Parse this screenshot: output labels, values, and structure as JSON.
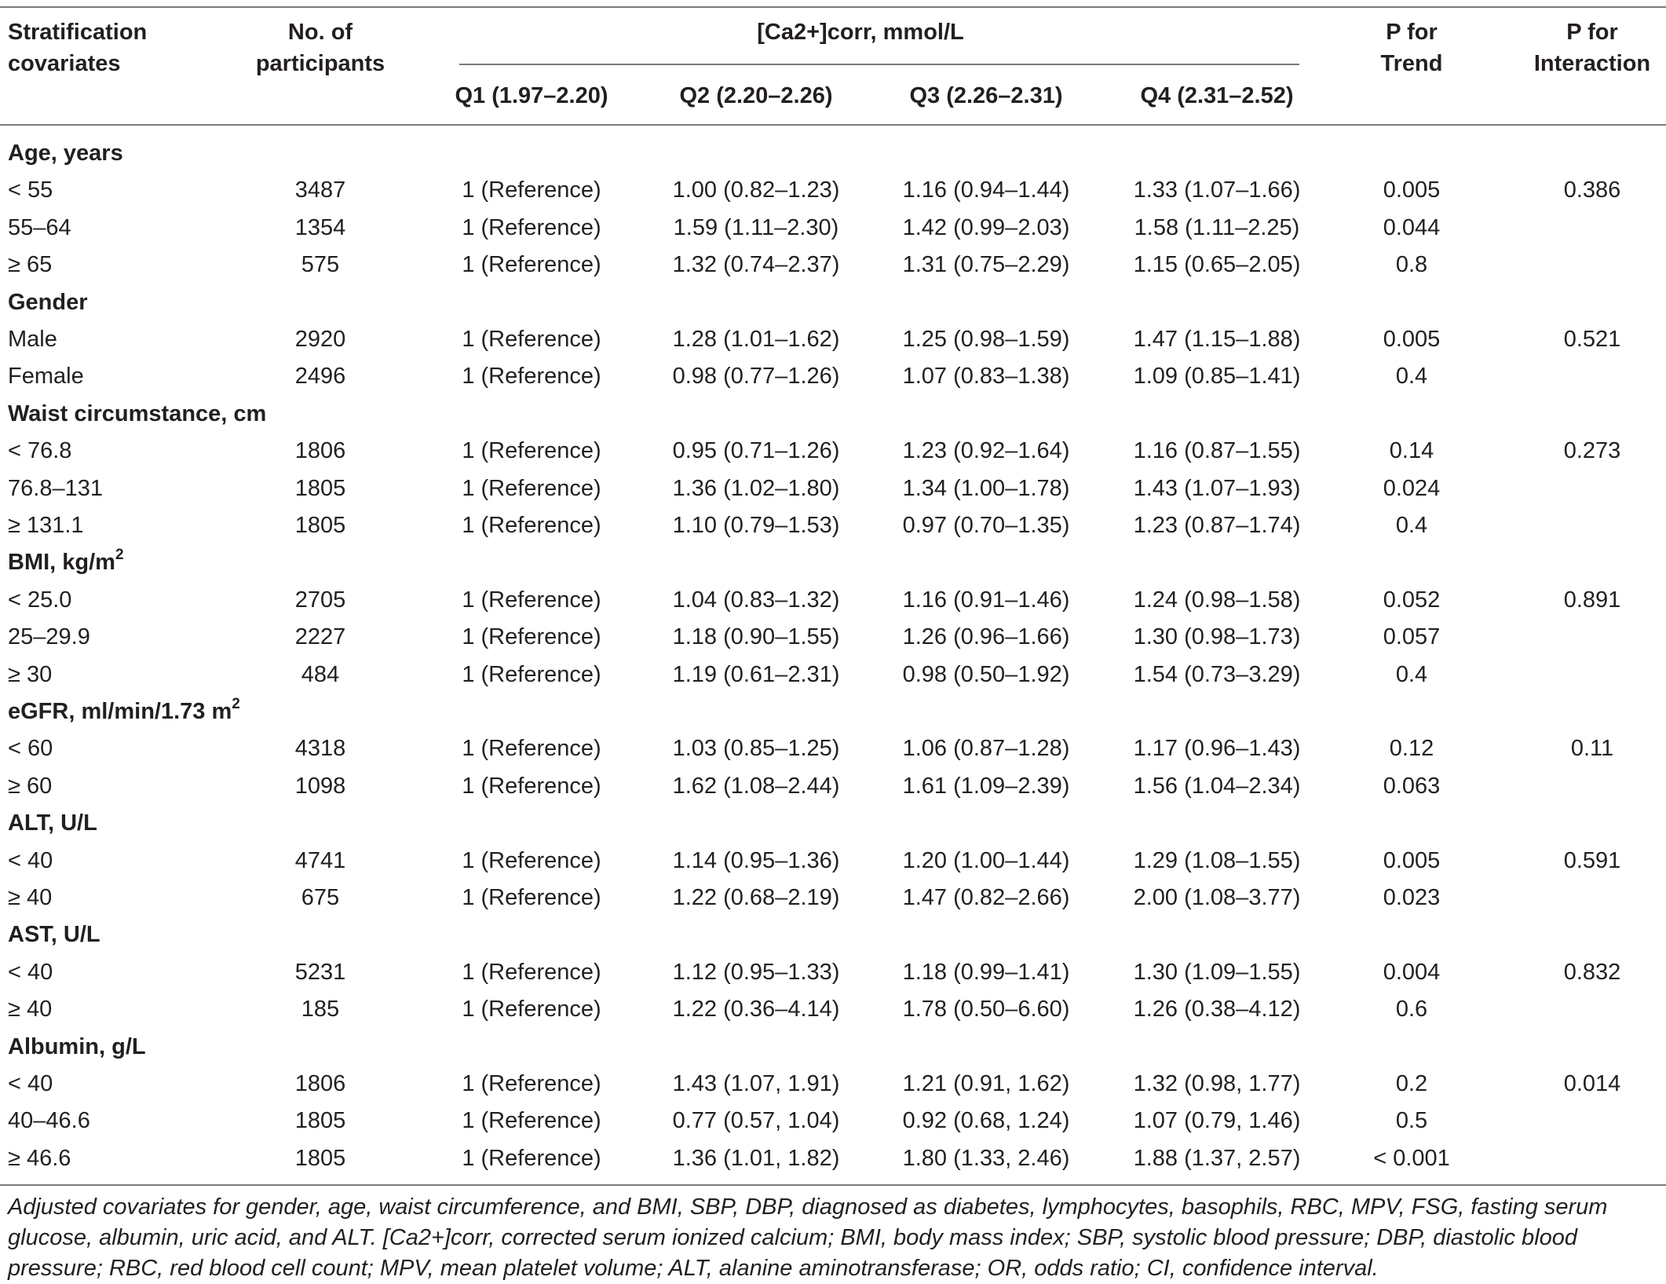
{
  "table": {
    "headers": {
      "stratification": [
        "Stratification",
        "covariates"
      ],
      "participants": [
        "No. of",
        "participants"
      ],
      "group": "[Ca2+]corr, mmol/L",
      "q1": "Q1 (1.97–2.20)",
      "q2": "Q2 (2.20–2.26)",
      "q3": "Q3 (2.26–2.31)",
      "q4": "Q4 (2.31–2.52)",
      "p_trend": [
        "P for",
        "Trend"
      ],
      "p_interaction": [
        "P for",
        "Interaction"
      ]
    },
    "rows": [
      {
        "type": "section",
        "label": "Age, years"
      },
      {
        "type": "data",
        "label": "< 55",
        "n": "3487",
        "q1": "1 (Reference)",
        "q2": "1.00 (0.82–1.23)",
        "q3": "1.16 (0.94–1.44)",
        "q4": "1.33 (1.07–1.66)",
        "p_trend": "0.005",
        "p_interaction": "0.386"
      },
      {
        "type": "data",
        "label": "55–64",
        "n": "1354",
        "q1": "1 (Reference)",
        "q2": "1.59 (1.11–2.30)",
        "q3": "1.42 (0.99–2.03)",
        "q4": "1.58 (1.11–2.25)",
        "p_trend": "0.044",
        "p_interaction": ""
      },
      {
        "type": "data",
        "label": "≥ 65",
        "n": "575",
        "q1": "1 (Reference)",
        "q2": "1.32 (0.74–2.37)",
        "q3": "1.31 (0.75–2.29)",
        "q4": "1.15 (0.65–2.05)",
        "p_trend": "0.8",
        "p_interaction": ""
      },
      {
        "type": "section",
        "label": "Gender"
      },
      {
        "type": "data",
        "label": "Male",
        "n": "2920",
        "q1": "1 (Reference)",
        "q2": "1.28 (1.01–1.62)",
        "q3": "1.25 (0.98–1.59)",
        "q4": "1.47 (1.15–1.88)",
        "p_trend": "0.005",
        "p_interaction": "0.521"
      },
      {
        "type": "data",
        "label": "Female",
        "n": "2496",
        "q1": "1 (Reference)",
        "q2": "0.98 (0.77–1.26)",
        "q3": "1.07 (0.83–1.38)",
        "q4": "1.09 (0.85–1.41)",
        "p_trend": "0.4",
        "p_interaction": ""
      },
      {
        "type": "section",
        "label": "Waist circumstance, cm"
      },
      {
        "type": "data",
        "label": "< 76.8",
        "n": "1806",
        "q1": "1 (Reference)",
        "q2": "0.95 (0.71–1.26)",
        "q3": "1.23 (0.92–1.64)",
        "q4": "1.16 (0.87–1.55)",
        "p_trend": "0.14",
        "p_interaction": "0.273"
      },
      {
        "type": "data",
        "label": "76.8–131",
        "n": "1805",
        "q1": "1 (Reference)",
        "q2": "1.36 (1.02–1.80)",
        "q3": "1.34 (1.00–1.78)",
        "q4": "1.43 (1.07–1.93)",
        "p_trend": "0.024",
        "p_interaction": ""
      },
      {
        "type": "data",
        "label": "≥ 131.1",
        "n": "1805",
        "q1": "1 (Reference)",
        "q2": "1.10 (0.79–1.53)",
        "q3": "0.97 (0.70–1.35)",
        "q4": "1.23 (0.87–1.74)",
        "p_trend": "0.4",
        "p_interaction": ""
      },
      {
        "type": "section",
        "label": "BMI, kg/m",
        "sup": "2"
      },
      {
        "type": "data",
        "label": "< 25.0",
        "n": "2705",
        "q1": "1 (Reference)",
        "q2": "1.04 (0.83–1.32)",
        "q3": "1.16 (0.91–1.46)",
        "q4": "1.24 (0.98–1.58)",
        "p_trend": "0.052",
        "p_interaction": "0.891"
      },
      {
        "type": "data",
        "label": "25–29.9",
        "n": "2227",
        "q1": "1 (Reference)",
        "q2": "1.18 (0.90–1.55)",
        "q3": "1.26 (0.96–1.66)",
        "q4": "1.30 (0.98–1.73)",
        "p_trend": "0.057",
        "p_interaction": ""
      },
      {
        "type": "data",
        "label": "≥ 30",
        "n": "484",
        "q1": "1 (Reference)",
        "q2": "1.19 (0.61–2.31)",
        "q3": "0.98 (0.50–1.92)",
        "q4": "1.54 (0.73–3.29)",
        "p_trend": "0.4",
        "p_interaction": ""
      },
      {
        "type": "section",
        "label": "eGFR, ml/min/1.73 m",
        "sup": "2"
      },
      {
        "type": "data",
        "label": "< 60",
        "n": "4318",
        "q1": "1 (Reference)",
        "q2": "1.03 (0.85–1.25)",
        "q3": "1.06 (0.87–1.28)",
        "q4": "1.17 (0.96–1.43)",
        "p_trend": "0.12",
        "p_interaction": "0.11"
      },
      {
        "type": "data",
        "label": "≥ 60",
        "n": "1098",
        "q1": "1 (Reference)",
        "q2": "1.62 (1.08–2.44)",
        "q3": "1.61 (1.09–2.39)",
        "q4": "1.56 (1.04–2.34)",
        "p_trend": "0.063",
        "p_interaction": ""
      },
      {
        "type": "section",
        "label": "ALT, U/L"
      },
      {
        "type": "data",
        "label": "< 40",
        "n": "4741",
        "q1": "1 (Reference)",
        "q2": "1.14 (0.95–1.36)",
        "q3": "1.20 (1.00–1.44)",
        "q4": "1.29 (1.08–1.55)",
        "p_trend": "0.005",
        "p_interaction": "0.591"
      },
      {
        "type": "data",
        "label": "≥ 40",
        "n": "675",
        "q1": "1 (Reference)",
        "q2": "1.22 (0.68–2.19)",
        "q3": "1.47 (0.82–2.66)",
        "q4": "2.00 (1.08–3.77)",
        "p_trend": "0.023",
        "p_interaction": ""
      },
      {
        "type": "section",
        "label": "AST, U/L"
      },
      {
        "type": "data",
        "label": "< 40",
        "n": "5231",
        "q1": "1 (Reference)",
        "q2": "1.12 (0.95–1.33)",
        "q3": "1.18 (0.99–1.41)",
        "q4": "1.30 (1.09–1.55)",
        "p_trend": "0.004",
        "p_interaction": "0.832"
      },
      {
        "type": "data",
        "label": "≥ 40",
        "n": "185",
        "q1": "1 (Reference)",
        "q2": "1.22 (0.36–4.14)",
        "q3": "1.78 (0.50–6.60)",
        "q4": "1.26 (0.38–4.12)",
        "p_trend": "0.6",
        "p_interaction": ""
      },
      {
        "type": "section",
        "label": "Albumin, g/L"
      },
      {
        "type": "data",
        "label": "< 40",
        "n": "1806",
        "q1": "1 (Reference)",
        "q2": "1.43 (1.07, 1.91)",
        "q3": "1.21 (0.91, 1.62)",
        "q4": "1.32 (0.98, 1.77)",
        "p_trend": "0.2",
        "p_interaction": "0.014"
      },
      {
        "type": "data",
        "label": "40–46.6",
        "n": "1805",
        "q1": "1 (Reference)",
        "q2": "0.77 (0.57, 1.04)",
        "q3": "0.92 (0.68, 1.24)",
        "q4": "1.07 (0.79, 1.46)",
        "p_trend": "0.5",
        "p_interaction": ""
      },
      {
        "type": "data",
        "label": "≥ 46.6",
        "n": "1805",
        "q1": "1 (Reference)",
        "q2": "1.36 (1.01, 1.82)",
        "q3": "1.80 (1.33, 2.46)",
        "q4": "1.88 (1.37, 2.57)",
        "p_trend": "< 0.001",
        "p_interaction": ""
      }
    ]
  },
  "footnote": "Adjusted covariates for gender, age, waist circumference, and BMI, SBP, DBP, diagnosed as diabetes, lymphocytes, basophils, RBC, MPV, FSG, fasting serum glucose, albumin, uric acid, and ALT. [Ca2+]corr, corrected serum ionized calcium; BMI, body mass index; SBP, systolic blood pressure; DBP, diastolic blood pressure; RBC, red blood cell count; MPV, mean platelet volume; ALT, alanine aminotransferase; OR, odds ratio; CI, confidence interval."
}
